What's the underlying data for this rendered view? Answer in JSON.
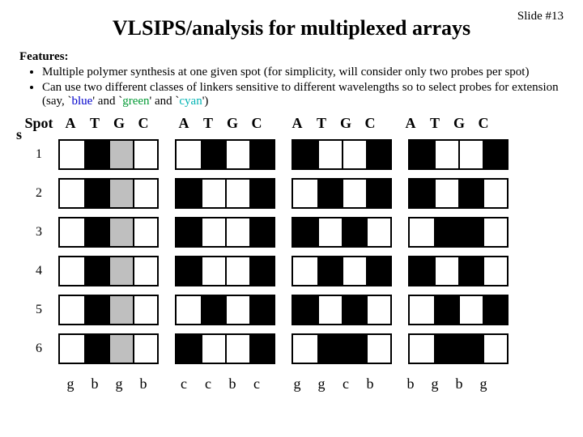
{
  "slide_number": "Slide #13",
  "title": "VLSIPS/analysis for multiplexed arrays",
  "features_header": "Features:",
  "features": [
    "Multiple polymer synthesis at one given spot (for simplicity, will consider only two probes per spot)",
    "Can use two different classes of linkers sensitive to different wavelengths so to select probes for extension (say, `<span class=\"blue\">blue</span>' and `<span class=\"green\">green</span>' and `<span class=\"cyan\">cyan</span>')"
  ],
  "spots_label": "Spot\ns",
  "col_labels": [
    "A",
    "T",
    "G",
    "C"
  ],
  "row_labels": [
    "1",
    "2",
    "3",
    "4",
    "5",
    "6"
  ],
  "colors": {
    "white": "#ffffff",
    "black": "#000000",
    "grey": "#bfbfbf"
  },
  "groups": [
    {
      "footer": [
        "g",
        "b",
        "g",
        "b"
      ],
      "grid": [
        [
          "white",
          "black",
          "grey",
          "white"
        ],
        [
          "white",
          "black",
          "grey",
          "white"
        ],
        [
          "white",
          "black",
          "grey",
          "white"
        ],
        [
          "white",
          "black",
          "grey",
          "white"
        ],
        [
          "white",
          "black",
          "grey",
          "white"
        ],
        [
          "white",
          "black",
          "grey",
          "white"
        ]
      ]
    },
    {
      "footer": [
        "c",
        "c",
        "b",
        "c"
      ],
      "grid": [
        [
          "white",
          "black",
          "white",
          "black"
        ],
        [
          "black",
          "white",
          "white",
          "black"
        ],
        [
          "black",
          "white",
          "white",
          "black"
        ],
        [
          "black",
          "white",
          "white",
          "black"
        ],
        [
          "white",
          "black",
          "white",
          "black"
        ],
        [
          "black",
          "white",
          "white",
          "black"
        ]
      ]
    },
    {
      "footer": [
        "g",
        "g",
        "c",
        "b"
      ],
      "grid": [
        [
          "black",
          "white",
          "white",
          "black"
        ],
        [
          "white",
          "black",
          "white",
          "black"
        ],
        [
          "black",
          "white",
          "black",
          "white"
        ],
        [
          "white",
          "black",
          "white",
          "black"
        ],
        [
          "black",
          "white",
          "black",
          "white"
        ],
        [
          "white",
          "black",
          "black",
          "white"
        ]
      ]
    },
    {
      "footer": [
        "b",
        "g",
        "b",
        "g"
      ],
      "grid": [
        [
          "black",
          "white",
          "white",
          "black"
        ],
        [
          "black",
          "white",
          "black",
          "white"
        ],
        [
          "white",
          "black",
          "black",
          "white"
        ],
        [
          "black",
          "white",
          "black",
          "white"
        ],
        [
          "white",
          "black",
          "white",
          "black"
        ],
        [
          "white",
          "black",
          "black",
          "white"
        ]
      ]
    }
  ]
}
